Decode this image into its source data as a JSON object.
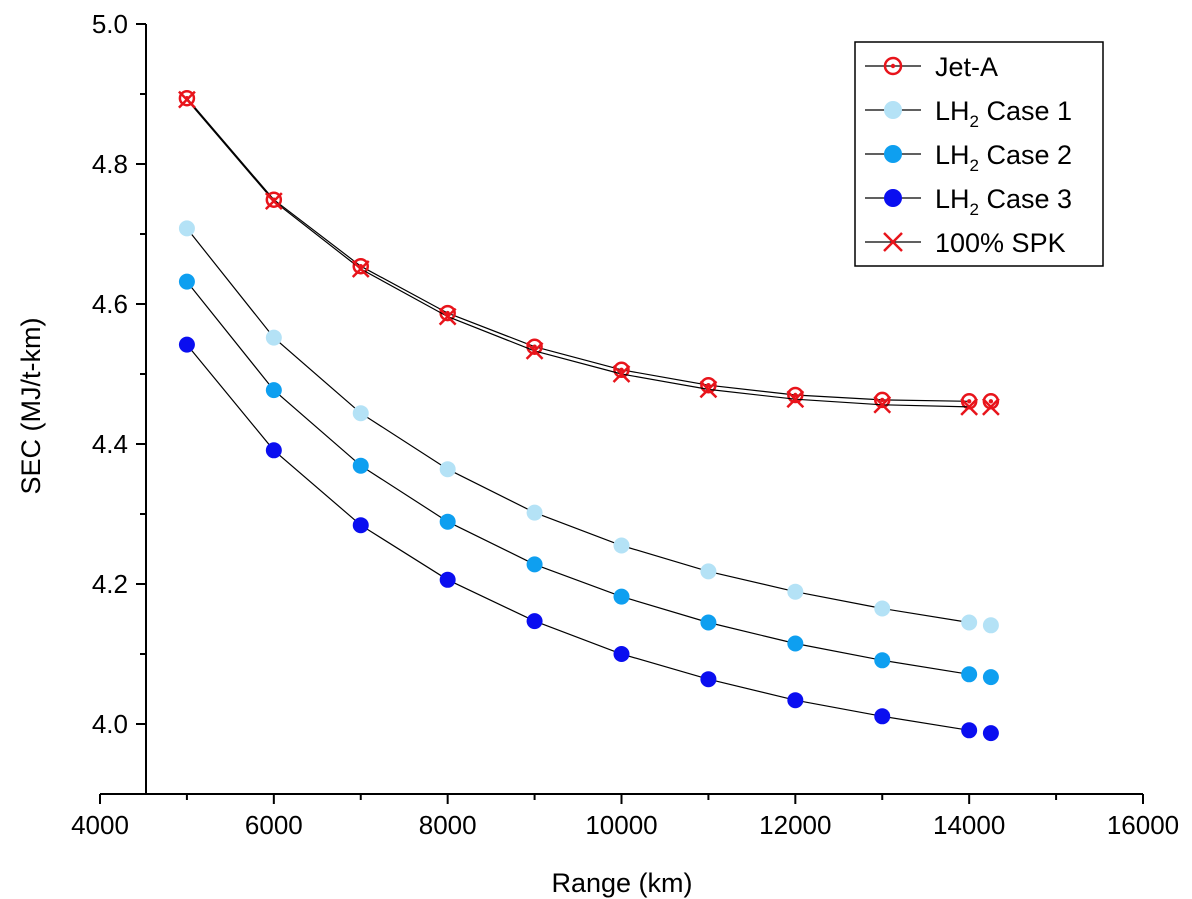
{
  "chart_data": {
    "type": "line",
    "xlabel": "Range (km)",
    "ylabel": "SEC (MJ/t-km)",
    "xlim": [
      4000,
      16000
    ],
    "ylim": [
      3.9,
      5.0
    ],
    "xticks": [
      4000,
      6000,
      8000,
      10000,
      12000,
      14000,
      16000
    ],
    "xtick_labels": [
      "4000",
      "6000",
      "8000",
      "10000",
      "12000",
      "14000",
      "16000"
    ],
    "yticks": [
      4.0,
      4.2,
      4.4,
      4.6,
      4.8,
      5.0
    ],
    "ytick_labels": [
      "4.0",
      "4.2",
      "4.4",
      "4.6",
      "4.8",
      "5.0"
    ],
    "legend_position": "top-right",
    "series": [
      {
        "name": "Jet-A",
        "name_main": "Jet-A",
        "name_sub": "",
        "name_tail": "",
        "marker": "open-circle",
        "color": "#e8141b",
        "x": [
          5000,
          6000,
          7000,
          8000,
          9000,
          10000,
          11000,
          12000,
          13000,
          14000,
          14250
        ],
        "y": [
          4.894,
          4.749,
          4.654,
          4.587,
          4.539,
          4.506,
          4.484,
          4.47,
          4.463,
          4.461,
          4.461
        ]
      },
      {
        "name": "LH2 Case 1",
        "name_main": "LH",
        "name_sub": "2",
        "name_tail": " Case 1",
        "marker": "filled-circle",
        "color": "#b4e2f6",
        "x": [
          5000,
          6000,
          7000,
          8000,
          9000,
          10000,
          11000,
          12000,
          13000,
          14000,
          14250
        ],
        "y": [
          4.708,
          4.552,
          4.444,
          4.364,
          4.302,
          4.255,
          4.218,
          4.189,
          4.165,
          4.145,
          4.141
        ]
      },
      {
        "name": "LH2 Case 2",
        "name_main": "LH",
        "name_sub": "2",
        "name_tail": " Case 2",
        "marker": "filled-circle",
        "color": "#0e9ff0",
        "x": [
          5000,
          6000,
          7000,
          8000,
          9000,
          10000,
          11000,
          12000,
          13000,
          14000,
          14250
        ],
        "y": [
          4.632,
          4.477,
          4.369,
          4.289,
          4.228,
          4.182,
          4.145,
          4.115,
          4.091,
          4.071,
          4.067
        ]
      },
      {
        "name": "LH2 Case 3",
        "name_main": "LH",
        "name_sub": "2",
        "name_tail": " Case 3",
        "marker": "filled-circle",
        "color": "#0a0ef0",
        "x": [
          5000,
          6000,
          7000,
          8000,
          9000,
          10000,
          11000,
          12000,
          13000,
          14000,
          14250
        ],
        "y": [
          4.542,
          4.391,
          4.284,
          4.206,
          4.147,
          4.1,
          4.064,
          4.034,
          4.011,
          3.991,
          3.987
        ]
      },
      {
        "name": "100% SPK",
        "name_main": "100% SPK",
        "name_sub": "",
        "name_tail": "",
        "marker": "x",
        "color": "#e8141b",
        "x": [
          5000,
          6000,
          7000,
          8000,
          9000,
          10000,
          11000,
          12000,
          13000,
          14000,
          14250
        ],
        "y": [
          4.892,
          4.747,
          4.65,
          4.582,
          4.533,
          4.5,
          4.478,
          4.464,
          4.456,
          4.453,
          4.453
        ]
      }
    ]
  }
}
